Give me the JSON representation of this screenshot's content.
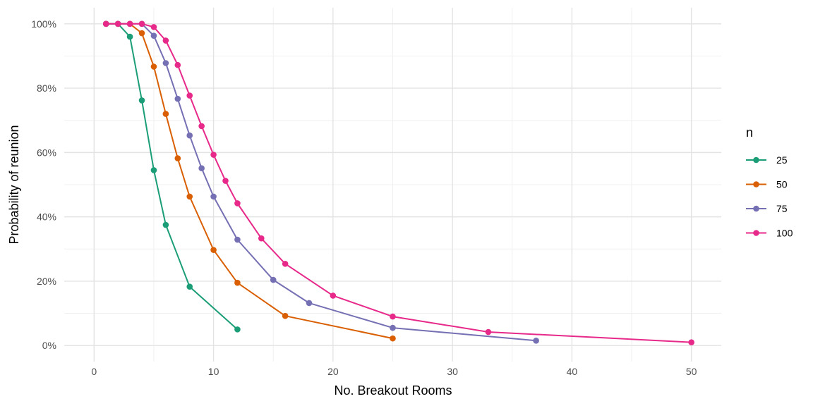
{
  "chart_data": {
    "type": "line",
    "xlabel": "No. Breakout Rooms",
    "ylabel": "Probability of reunion",
    "xlim": [
      -2.5,
      52.5
    ],
    "ylim": [
      -0.05,
      1.05
    ],
    "x_ticks": [
      0,
      10,
      20,
      30,
      40,
      50
    ],
    "x_tick_labels": [
      "0",
      "10",
      "20",
      "30",
      "40",
      "50"
    ],
    "y_ticks": [
      0,
      0.2,
      0.4,
      0.6,
      0.8,
      1.0
    ],
    "y_tick_labels": [
      "0%",
      "20%",
      "40%",
      "60%",
      "80%",
      "100%"
    ],
    "grid": true,
    "legend_position": "right",
    "legend_title": "n",
    "series": [
      {
        "name": "25",
        "color": "#1b9e77",
        "x": [
          1,
          2,
          3,
          4,
          5,
          6,
          8,
          12
        ],
        "y": [
          1.0,
          1.0,
          0.96,
          0.762,
          0.545,
          0.375,
          0.183,
          0.05
        ]
      },
      {
        "name": "50",
        "color": "#d95f02",
        "x": [
          1,
          2,
          3,
          4,
          5,
          6,
          7,
          8,
          10,
          12,
          16,
          25
        ],
        "y": [
          1.0,
          1.0,
          1.0,
          0.971,
          0.867,
          0.72,
          0.582,
          0.463,
          0.297,
          0.195,
          0.092,
          0.022
        ]
      },
      {
        "name": "75",
        "color": "#7570b3",
        "x": [
          1,
          2,
          3,
          4,
          5,
          6,
          7,
          8,
          9,
          10,
          12,
          15,
          18,
          25,
          37
        ],
        "y": [
          1.0,
          1.0,
          1.0,
          1.0,
          0.963,
          0.878,
          0.767,
          0.653,
          0.551,
          0.463,
          0.329,
          0.204,
          0.132,
          0.055,
          0.015
        ]
      },
      {
        "name": "100",
        "color": "#e7298a",
        "x": [
          1,
          2,
          3,
          4,
          5,
          6,
          7,
          8,
          9,
          10,
          11,
          12,
          14,
          16,
          20,
          25,
          33,
          50
        ],
        "y": [
          1.0,
          1.0,
          1.0,
          1.0,
          0.99,
          0.948,
          0.872,
          0.777,
          0.682,
          0.593,
          0.512,
          0.442,
          0.333,
          0.254,
          0.155,
          0.09,
          0.042,
          0.01
        ]
      }
    ]
  }
}
